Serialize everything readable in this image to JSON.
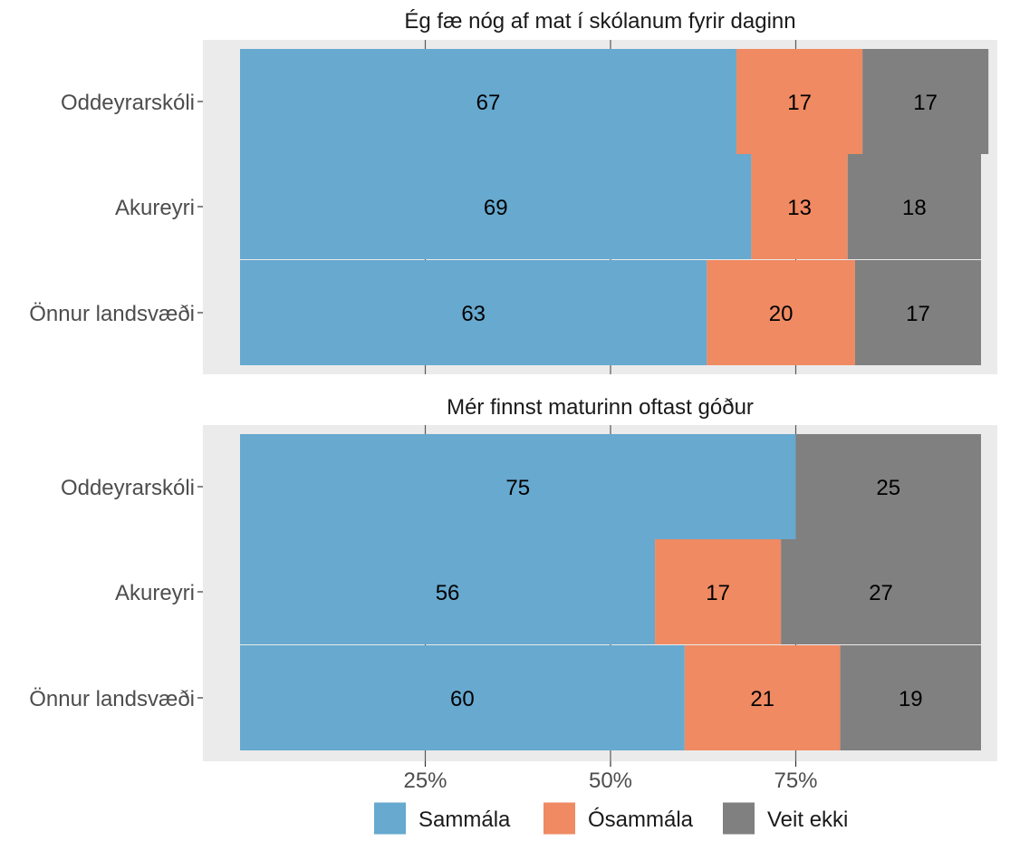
{
  "chart_data": [
    {
      "type": "bar",
      "orientation": "horizontal",
      "stacked": true,
      "title": "Ég fæ nóg af mat í skólanum fyrir daginn",
      "categories": [
        "Oddeyrarskóli",
        "Akureyri",
        "Önnur landsvæði"
      ],
      "series": [
        {
          "name": "Sammála",
          "values": [
            67,
            69,
            63
          ],
          "color": "#67a9cf"
        },
        {
          "name": "Ósammála",
          "values": [
            17,
            13,
            20
          ],
          "color": "#ef8a62"
        },
        {
          "name": "Veit ekki",
          "values": [
            17,
            18,
            17
          ],
          "color": "#808080"
        }
      ],
      "xlim": [
        0,
        100
      ],
      "xticks": [
        25,
        50,
        75
      ],
      "grid": true
    },
    {
      "type": "bar",
      "orientation": "horizontal",
      "stacked": true,
      "title": "Mér finnst maturinn oftast góður",
      "categories": [
        "Oddeyrarskóli",
        "Akureyri",
        "Önnur landsvæði"
      ],
      "series": [
        {
          "name": "Sammála",
          "values": [
            75,
            56,
            60
          ],
          "color": "#67a9cf"
        },
        {
          "name": "Ósammála",
          "values": [
            0,
            17,
            21
          ],
          "color": "#ef8a62"
        },
        {
          "name": "Veit ekki",
          "values": [
            25,
            27,
            19
          ],
          "color": "#808080"
        }
      ],
      "xlim": [
        0,
        100
      ],
      "xticks": [
        25,
        50,
        75
      ],
      "grid": true
    }
  ],
  "axis": {
    "tick_labels": [
      "25%",
      "50%",
      "75%"
    ]
  },
  "legend": {
    "placement": "bottom",
    "items": [
      {
        "label": "Sammála",
        "color": "#67a9cf"
      },
      {
        "label": "Ósammála",
        "color": "#ef8a62"
      },
      {
        "label": "Veit ekki",
        "color": "#808080"
      }
    ]
  },
  "colors": {
    "panel_bg": "#ebebeb",
    "grid": "#5a5a5a",
    "axis_text": "#4d4d4d"
  }
}
